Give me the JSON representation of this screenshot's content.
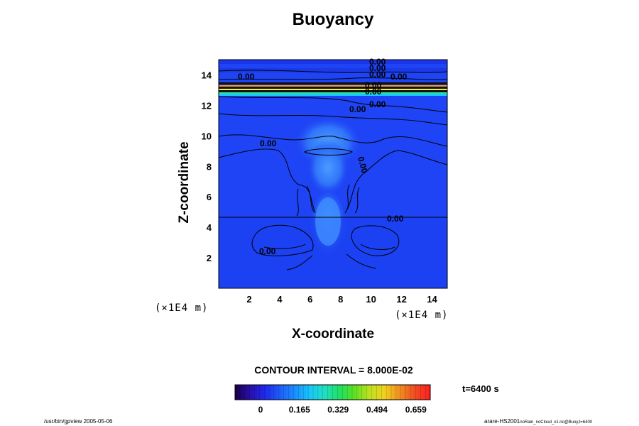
{
  "title": "Buoyancy",
  "xlabel": "X-coordinate",
  "ylabel": "Z-coordinate",
  "x_unit": "(×1E4 m)",
  "y_unit": "(×1E4 m)",
  "contour_interval": "CONTOUR INTERVAL = 8.000E-02",
  "time_label": "t=6400 s",
  "footer_left": "/usr/bin/gpview 2005-05-06",
  "footer_right_main": "arare-HS2001",
  "footer_right_sub": "noRain_noCloud_x1.nc@Buoy,t=6400",
  "contour_labels": [
    "0.00",
    "0.00",
    "0.00",
    "0.00",
    "0.00",
    "0.00",
    "0.00",
    "0.00",
    "0.00",
    "0.00",
    "0.00",
    "0.00",
    "0.00"
  ],
  "colors": {
    "background_field": "#1e44f5",
    "colorbar_low": "#1a0050",
    "colorbar_high": "#ff2020"
  },
  "chart_data": {
    "type": "heatmap",
    "title": "Buoyancy",
    "xlabel": "X-coordinate",
    "ylabel": "Z-coordinate",
    "xlim": [
      0,
      15
    ],
    "ylim": [
      0,
      15
    ],
    "xticks": [
      2,
      4,
      6,
      8,
      10,
      12,
      14
    ],
    "yticks": [
      2,
      4,
      6,
      8,
      10,
      12,
      14
    ],
    "colorbar": {
      "ticks": [
        0,
        0.165,
        0.329,
        0.494,
        0.659
      ],
      "tick_labels": [
        "0",
        "0.165",
        "0.329",
        "0.494",
        "0.659"
      ],
      "colors": [
        "#1a0050",
        "#2a10b0",
        "#1e2cf0",
        "#1e60f8",
        "#1890ff",
        "#18c8f8",
        "#20e0c0",
        "#20e060",
        "#60e020",
        "#c0e020",
        "#f0d020",
        "#f09020",
        "#f05020",
        "#ff2020"
      ]
    },
    "features": [
      {
        "name": "stratosphere band",
        "z": [
          12.6,
          13.3
        ],
        "value": 0.659
      },
      {
        "name": "plume head",
        "x": 7,
        "z": 9.5,
        "value": 0.165
      },
      {
        "name": "plume stem",
        "x": 7,
        "z": 4.5,
        "value": 0.165
      }
    ]
  }
}
